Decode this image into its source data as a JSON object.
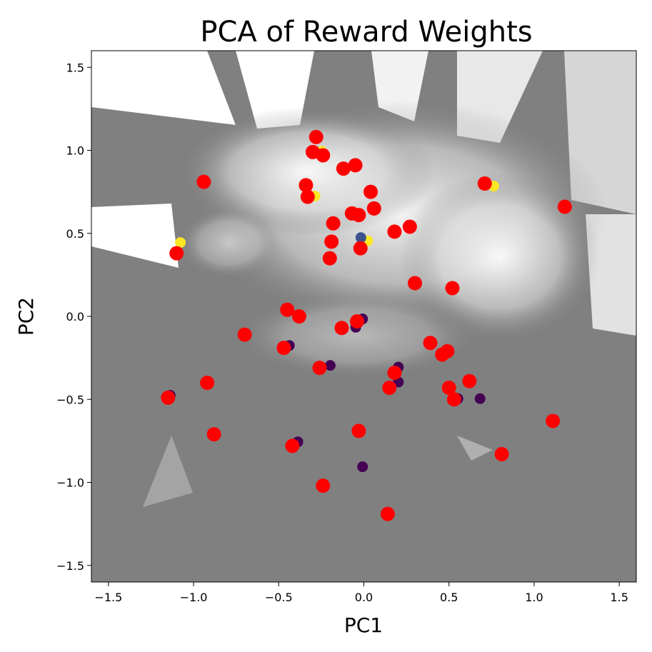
{
  "chart_data": {
    "type": "scatter",
    "title": "PCA of Reward Weights",
    "xlabel": "PC1",
    "ylabel": "PC2",
    "xlim": [
      -1.6,
      1.6
    ],
    "ylim": [
      -1.6,
      1.6
    ],
    "xticks": [
      "−1.5",
      "−1.0",
      "−0.5",
      "0.0",
      "0.5",
      "1.0",
      "1.5"
    ],
    "yticks": [
      "−1.5",
      "−1.0",
      "−0.5",
      "0.0",
      "0.5",
      "1.0",
      "1.5"
    ],
    "grid": false,
    "background": "grayscale decision-surface heatmap",
    "colors": {
      "red_points": "#ff0000",
      "underlying_high": "#fde725",
      "underlying_mid": "#3b528b",
      "underlying_low": "#440154",
      "surface_dark": "#808080",
      "surface_light": "#ffffff"
    },
    "series": [
      {
        "color": "#ff0000",
        "points": [
          [
            -0.28,
            1.08
          ],
          [
            -0.3,
            0.99
          ],
          [
            -0.24,
            0.97
          ],
          [
            -0.12,
            0.89
          ],
          [
            -0.05,
            0.91
          ],
          [
            -0.94,
            0.81
          ],
          [
            -0.34,
            0.79
          ],
          [
            -0.33,
            0.72
          ],
          [
            0.04,
            0.75
          ],
          [
            0.71,
            0.8
          ],
          [
            1.18,
            0.66
          ],
          [
            0.06,
            0.65
          ],
          [
            -0.07,
            0.62
          ],
          [
            -0.03,
            0.61
          ],
          [
            -0.18,
            0.56
          ],
          [
            0.18,
            0.51
          ],
          [
            0.27,
            0.54
          ],
          [
            -0.19,
            0.45
          ],
          [
            -0.02,
            0.41
          ],
          [
            -1.1,
            0.38
          ],
          [
            -0.2,
            0.35
          ],
          [
            0.3,
            0.2
          ],
          [
            0.52,
            0.17
          ],
          [
            -0.45,
            0.04
          ],
          [
            -0.38,
            0.0
          ],
          [
            -0.04,
            -0.03
          ],
          [
            -0.13,
            -0.07
          ],
          [
            -0.7,
            -0.11
          ],
          [
            0.39,
            -0.16
          ],
          [
            -0.47,
            -0.19
          ],
          [
            0.49,
            -0.21
          ],
          [
            0.46,
            -0.23
          ],
          [
            -0.26,
            -0.31
          ],
          [
            0.18,
            -0.34
          ],
          [
            -0.92,
            -0.4
          ],
          [
            0.62,
            -0.39
          ],
          [
            0.15,
            -0.43
          ],
          [
            0.5,
            -0.43
          ],
          [
            -1.15,
            -0.49
          ],
          [
            0.53,
            -0.5
          ],
          [
            1.11,
            -0.63
          ],
          [
            -0.03,
            -0.69
          ],
          [
            -0.88,
            -0.71
          ],
          [
            -0.42,
            -0.78
          ],
          [
            0.81,
            -0.83
          ],
          [
            -0.24,
            -1.02
          ],
          [
            0.14,
            -1.19
          ]
        ]
      },
      {
        "color": "#fde725",
        "points": [
          [
            -1.09,
            0.44
          ],
          [
            -0.3,
            0.72
          ],
          [
            0.01,
            0.45
          ],
          [
            0.75,
            0.78
          ],
          [
            -0.26,
            0.99
          ]
        ]
      },
      {
        "color": "#3b528b",
        "points": [
          [
            -0.03,
            0.47
          ],
          [
            0.46,
            -0.23
          ]
        ]
      },
      {
        "color": "#440154",
        "points": [
          [
            -0.45,
            -0.18
          ],
          [
            -0.06,
            -0.07
          ],
          [
            -0.02,
            -0.02
          ],
          [
            -0.21,
            -0.3
          ],
          [
            0.19,
            -0.31
          ],
          [
            0.19,
            -0.4
          ],
          [
            0.67,
            -0.5
          ],
          [
            -0.4,
            -0.76
          ],
          [
            -0.02,
            -0.91
          ],
          [
            0.54,
            -0.5
          ],
          [
            -1.15,
            -0.48
          ]
        ]
      }
    ]
  }
}
